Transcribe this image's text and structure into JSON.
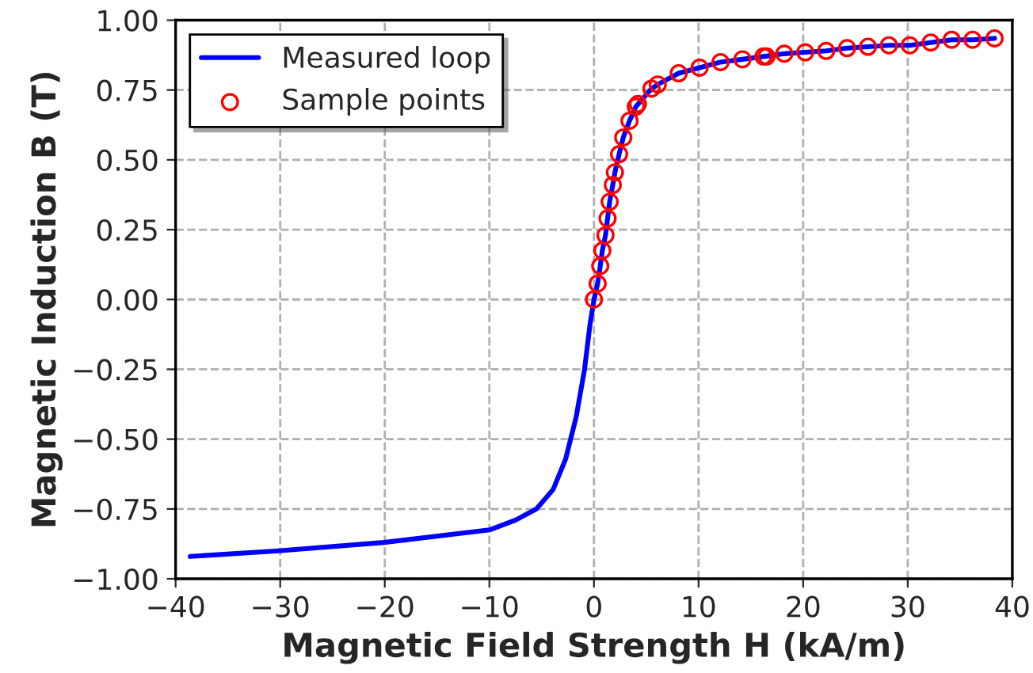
{
  "chart_data": {
    "type": "line",
    "xlabel": "Magnetic Field Strength H (kA/m)",
    "ylabel": "Magnetic Induction B (T)",
    "xlim": [
      -40,
      40
    ],
    "ylim": [
      -1.0,
      1.0
    ],
    "xticks": [
      {
        "value": -40,
        "label": "−40"
      },
      {
        "value": -30,
        "label": "−30"
      },
      {
        "value": -20,
        "label": "−20"
      },
      {
        "value": -10,
        "label": "−10"
      },
      0,
      10,
      20,
      30,
      40
    ],
    "yticks": [
      {
        "value": -1.0,
        "label": "−1.00"
      },
      {
        "value": -0.75,
        "label": "−0.75"
      },
      {
        "value": -0.5,
        "label": "−0.50"
      },
      {
        "value": -0.25,
        "label": "−0.25"
      },
      {
        "value": 0,
        "label": "0.00"
      },
      {
        "value": 0.25,
        "label": "0.25"
      },
      {
        "value": 0.5,
        "label": "0.50"
      },
      {
        "value": 0.75,
        "label": "0.75"
      },
      {
        "value": 1.0,
        "label": "1.00"
      }
    ],
    "grid": true,
    "legend": "top left",
    "series": [
      {
        "name": "Measured loop",
        "color": "#0000ff",
        "marker": "none",
        "line_style": "solid",
        "x": [
          -38.6,
          -30.2,
          -20.1,
          -10.0,
          -7.5,
          -5.5,
          -3.9,
          -2.7,
          -1.7,
          -0.9,
          -0.4,
          0,
          0.35,
          0.6,
          0.8,
          1.1,
          1.3,
          1.5,
          1.8,
          2.0,
          2.4,
          2.8,
          3.4,
          4.0,
          5.5,
          6.1,
          8.1,
          10.1,
          12.1,
          14.2,
          16.2,
          18.2,
          20.2,
          22.2,
          24.2,
          26.2,
          28.2,
          30.2,
          32.2,
          34.2,
          36.2,
          38.3
        ],
        "values": [
          -0.92,
          -0.9,
          -0.87,
          -0.825,
          -0.79,
          -0.75,
          -0.68,
          -0.57,
          -0.42,
          -0.25,
          -0.095,
          0,
          0.057,
          0.12,
          0.175,
          0.23,
          0.29,
          0.35,
          0.41,
          0.455,
          0.52,
          0.58,
          0.64,
          0.69,
          0.755,
          0.77,
          0.81,
          0.83,
          0.85,
          0.86,
          0.87,
          0.88,
          0.885,
          0.89,
          0.9,
          0.905,
          0.91,
          0.91,
          0.92,
          0.93,
          0.93,
          0.935
        ]
      },
      {
        "name": "Sample points",
        "type": "scatter",
        "color": "#ff0000",
        "marker": "circle",
        "x": [
          0,
          0.35,
          0.6,
          0.8,
          1.1,
          1.3,
          1.5,
          1.8,
          2.0,
          2.4,
          2.8,
          3.4,
          4.0,
          4.2,
          5.5,
          6.1,
          8.1,
          10.1,
          12.1,
          14.2,
          16.2,
          16.5,
          18.2,
          20.2,
          22.2,
          24.2,
          26.2,
          28.2,
          30.2,
          32.2,
          34.2,
          36.2,
          38.3
        ],
        "values": [
          0,
          0.057,
          0.12,
          0.175,
          0.23,
          0.29,
          0.35,
          0.41,
          0.455,
          0.52,
          0.58,
          0.64,
          0.69,
          0.7,
          0.755,
          0.77,
          0.81,
          0.83,
          0.85,
          0.86,
          0.87,
          0.87,
          0.88,
          0.885,
          0.89,
          0.9,
          0.905,
          0.91,
          0.91,
          0.92,
          0.93,
          0.93,
          0.935
        ]
      }
    ]
  }
}
